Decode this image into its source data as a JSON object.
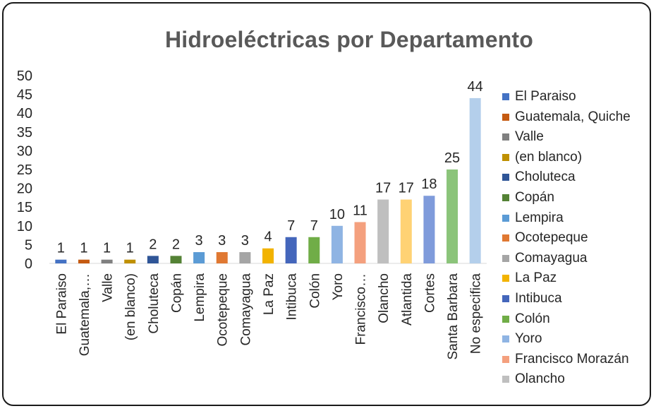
{
  "chart_data": {
    "type": "bar",
    "title": "Hidroeléctricas por Departamento",
    "xlabel": "",
    "ylabel": "",
    "ylim": [
      0,
      50
    ],
    "yticks": [
      0,
      5,
      10,
      15,
      20,
      25,
      30,
      35,
      40,
      45,
      50
    ],
    "grid": false,
    "legend_position": "right",
    "categories": [
      "El Paraiso",
      "Guatemala,…",
      "Valle",
      "(en blanco)",
      "Choluteca",
      "Copán",
      "Lempira",
      "Ocotepeque",
      "Comayagua",
      "La Paz",
      "Intibuca",
      "Colón",
      "Yoro",
      "Francisco…",
      "Olancho",
      "Atlantida",
      "Cortes",
      "Santa Barbara",
      "No especifica"
    ],
    "values": [
      1,
      1,
      1,
      1,
      2,
      2,
      3,
      3,
      3,
      4,
      7,
      7,
      10,
      11,
      17,
      17,
      18,
      25,
      44
    ],
    "data_labels": [
      "1",
      "1",
      "1",
      "1",
      "2",
      "2",
      "3",
      "3",
      "3",
      "4",
      "7",
      "7",
      "10",
      "11",
      "17",
      "17",
      "18",
      "25",
      "44"
    ],
    "colors": [
      "#4472C4",
      "#C55A11",
      "#808080",
      "#BF9000",
      "#2F5597",
      "#548235",
      "#5B9BD5",
      "#E07832",
      "#A5A5A5",
      "#F2B300",
      "#4466BB",
      "#70AD47",
      "#8FB4E3",
      "#F4A07E",
      "#BFBFBF",
      "#FFD274",
      "#7F9BDB",
      "#8BC47A",
      "#B4CFEB"
    ]
  },
  "legend": {
    "items": [
      {
        "label": "El Paraiso",
        "color": "#4472C4"
      },
      {
        "label": "Guatemala, Quiche",
        "color": "#C55A11"
      },
      {
        "label": "Valle",
        "color": "#808080"
      },
      {
        "label": "(en blanco)",
        "color": "#BF9000"
      },
      {
        "label": "Choluteca",
        "color": "#2F5597"
      },
      {
        "label": "Copán",
        "color": "#548235"
      },
      {
        "label": "Lempira",
        "color": "#5B9BD5"
      },
      {
        "label": "Ocotepeque",
        "color": "#E07832"
      },
      {
        "label": "Comayagua",
        "color": "#A5A5A5"
      },
      {
        "label": "La Paz",
        "color": "#F2B300"
      },
      {
        "label": "Intibuca",
        "color": "#4466BB"
      },
      {
        "label": "Colón",
        "color": "#70AD47"
      },
      {
        "label": "Yoro",
        "color": "#8FB4E3"
      },
      {
        "label": "Francisco Morazán",
        "color": "#F4A07E"
      },
      {
        "label": "Olancho",
        "color": "#BFBFBF"
      }
    ]
  }
}
